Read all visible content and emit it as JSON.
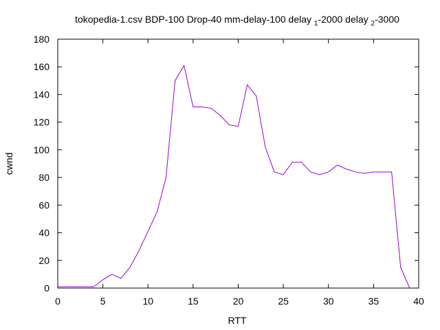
{
  "chart_data": {
    "type": "line",
    "title_parts": [
      {
        "text": "tokopedia-1.csv BDP-100 Drop-40 mm-delay-100 delay ",
        "sub": false
      },
      {
        "text": "1",
        "sub": true
      },
      {
        "text": "-2000 delay ",
        "sub": false
      },
      {
        "text": "2",
        "sub": true
      },
      {
        "text": "-3000",
        "sub": false
      }
    ],
    "xlabel": "RTT",
    "ylabel": "cwnd",
    "xlim": [
      0,
      40
    ],
    "ylim": [
      0,
      180
    ],
    "xticks": [
      0,
      5,
      10,
      15,
      20,
      25,
      30,
      35,
      40
    ],
    "yticks": [
      0,
      20,
      40,
      60,
      80,
      100,
      120,
      140,
      160,
      180
    ],
    "grid": false,
    "series": [
      {
        "color": "#9400d3",
        "x": [
          0,
          1,
          2,
          3,
          4,
          5,
          6,
          7,
          8,
          9,
          10,
          11,
          12,
          13,
          14,
          15,
          16,
          17,
          18,
          19,
          20,
          21,
          22,
          23,
          24,
          25,
          26,
          27,
          28,
          29,
          30,
          31,
          32,
          33,
          34,
          35,
          36,
          37,
          38,
          39
        ],
        "y": [
          1,
          1,
          1,
          1,
          1,
          6,
          10,
          7,
          15,
          27,
          41,
          55,
          80,
          150,
          161,
          131,
          131,
          130,
          125,
          118,
          117,
          147,
          139,
          102,
          84,
          82,
          91,
          91,
          84,
          82,
          84,
          89,
          86,
          84,
          83,
          84,
          84,
          84,
          15,
          0
        ]
      }
    ]
  }
}
